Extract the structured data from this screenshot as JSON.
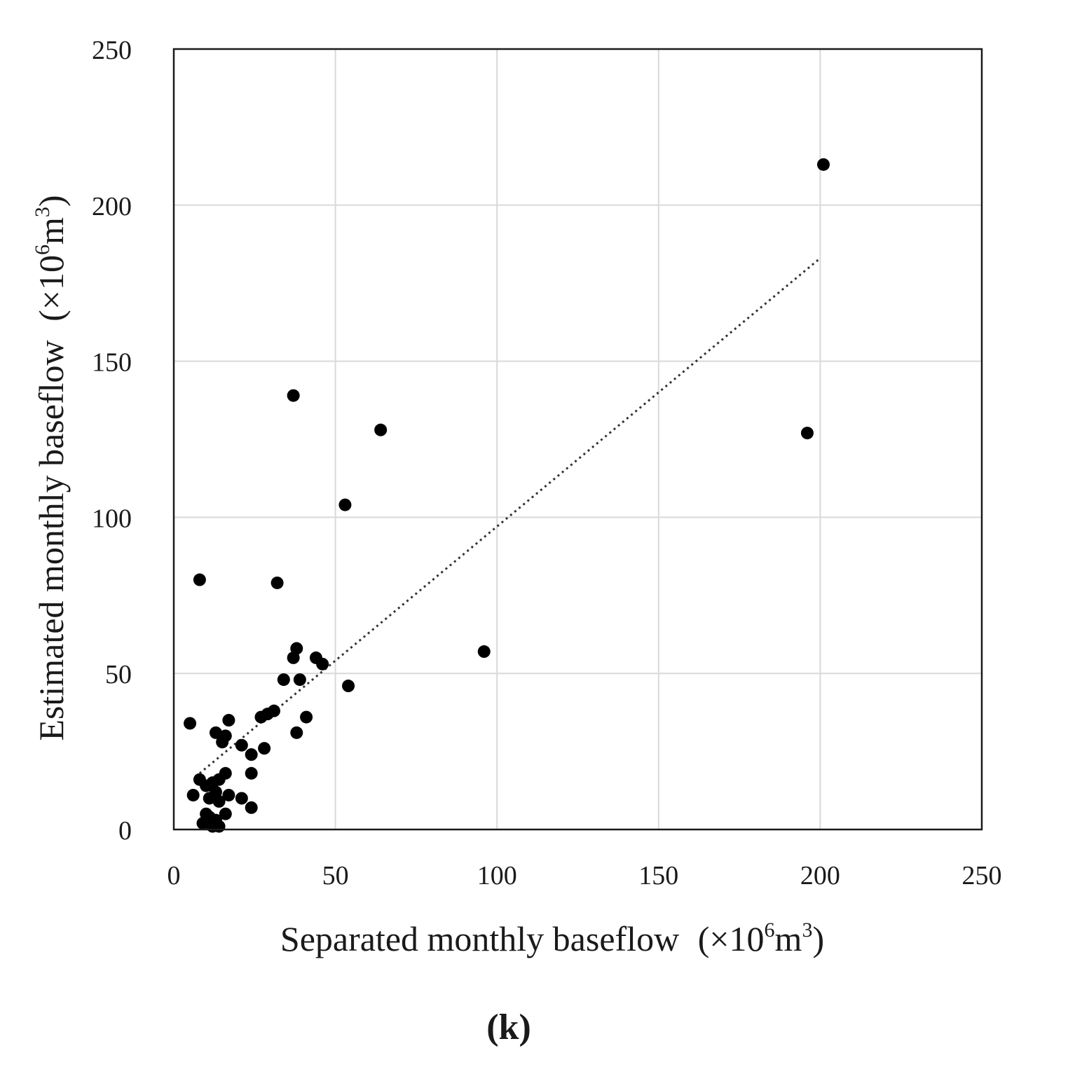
{
  "chart_data": {
    "type": "scatter",
    "title": "",
    "xlabel": "Separated monthly baseflow",
    "xlabel_unit": [
      "(×10",
      "6",
      "m",
      "3",
      ")"
    ],
    "ylabel": "Estimated monthly baseflow",
    "ylabel_unit": [
      "(×10",
      "6",
      "m",
      "3",
      ")"
    ],
    "xlim": [
      0,
      250
    ],
    "ylim": [
      0,
      250
    ],
    "xticks": [
      0,
      50,
      100,
      150,
      200,
      250
    ],
    "yticks": [
      0,
      50,
      100,
      150,
      200,
      250
    ],
    "grid": true,
    "legend": "none",
    "panel_label": "(k)",
    "series": [
      {
        "name": "monthly baseflow",
        "points": [
          [
            201,
            213
          ],
          [
            196,
            127
          ],
          [
            96,
            57
          ],
          [
            64,
            128
          ],
          [
            53,
            104
          ],
          [
            37,
            139
          ],
          [
            8,
            80
          ],
          [
            32,
            79
          ],
          [
            38,
            58
          ],
          [
            37,
            55
          ],
          [
            44,
            55
          ],
          [
            46,
            53
          ],
          [
            39,
            48
          ],
          [
            34,
            48
          ],
          [
            54,
            46
          ],
          [
            41,
            36
          ],
          [
            38,
            31
          ],
          [
            31,
            38
          ],
          [
            29,
            37
          ],
          [
            27,
            36
          ],
          [
            17,
            35
          ],
          [
            5,
            34
          ],
          [
            13,
            31
          ],
          [
            16,
            30
          ],
          [
            15,
            28
          ],
          [
            21,
            27
          ],
          [
            28,
            26
          ],
          [
            24,
            24
          ],
          [
            24,
            18
          ],
          [
            16,
            18
          ],
          [
            14,
            16
          ],
          [
            8,
            16
          ],
          [
            12,
            15
          ],
          [
            10,
            14
          ],
          [
            13,
            12
          ],
          [
            17,
            11
          ],
          [
            6,
            11
          ],
          [
            11,
            10
          ],
          [
            21,
            10
          ],
          [
            14,
            9
          ],
          [
            24,
            7
          ],
          [
            10,
            5
          ],
          [
            16,
            5
          ],
          [
            11,
            4
          ],
          [
            13,
            3
          ],
          [
            9,
            2
          ],
          [
            14,
            1
          ],
          [
            12,
            1
          ]
        ]
      }
    ],
    "trendline": {
      "style": "dotted",
      "x": [
        8,
        200
      ],
      "y": [
        18,
        183
      ]
    }
  }
}
